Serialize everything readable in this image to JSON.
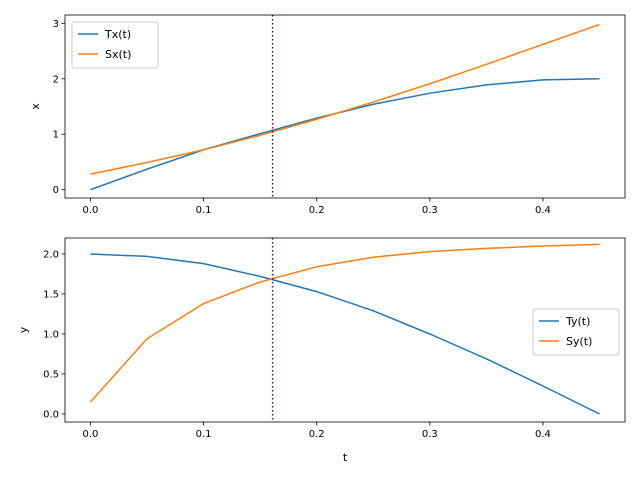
{
  "chart_data": [
    {
      "type": "line",
      "title": "",
      "xlabel": "",
      "ylabel": "x",
      "xlim": [
        -0.0225,
        0.4725
      ],
      "ylim": [
        -0.15,
        3.15
      ],
      "xticks": [
        0.0,
        0.1,
        0.2,
        0.3,
        0.4
      ],
      "xtick_labels": [
        "0.0",
        "0.1",
        "0.2",
        "0.3",
        "0.4"
      ],
      "yticks": [
        0,
        1,
        2,
        3
      ],
      "ytick_labels": [
        "0",
        "1",
        "2",
        "3"
      ],
      "legend_position": "upper-left",
      "vline": {
        "x": 0.161,
        "color": "#4b0082",
        "style": "dotted"
      },
      "series": [
        {
          "name": "Tx(t)",
          "color": "#1f77b4",
          "x": [
            0.0,
            0.05,
            0.1,
            0.15,
            0.2,
            0.25,
            0.3,
            0.35,
            0.4,
            0.45
          ],
          "values": [
            0.0,
            0.37,
            0.72,
            1.01,
            1.29,
            1.54,
            1.74,
            1.89,
            1.98,
            2.0
          ]
        },
        {
          "name": "Sx(t)",
          "color": "#ff7f0e",
          "x": [
            0.0,
            0.05,
            0.1,
            0.15,
            0.2,
            0.25,
            0.3,
            0.35,
            0.4,
            0.45
          ],
          "values": [
            0.28,
            0.49,
            0.72,
            0.98,
            1.27,
            1.58,
            1.91,
            2.26,
            2.62,
            2.98
          ]
        }
      ]
    },
    {
      "type": "line",
      "title": "",
      "xlabel": "t",
      "ylabel": "y",
      "xlim": [
        -0.0225,
        0.4725
      ],
      "ylim": [
        -0.1,
        2.2
      ],
      "xticks": [
        0.0,
        0.1,
        0.2,
        0.3,
        0.4
      ],
      "xtick_labels": [
        "0.0",
        "0.1",
        "0.2",
        "0.3",
        "0.4"
      ],
      "yticks": [
        0.0,
        0.5,
        1.0,
        1.5,
        2.0
      ],
      "ytick_labels": [
        "0.0",
        "0.5",
        "1.0",
        "1.5",
        "2.0"
      ],
      "legend_position": "center-right",
      "vline": {
        "x": 0.161,
        "color": "#4b0082",
        "style": "dotted"
      },
      "series": [
        {
          "name": "Ty(t)",
          "color": "#1f77b4",
          "x": [
            0.0,
            0.05,
            0.1,
            0.15,
            0.2,
            0.25,
            0.3,
            0.35,
            0.4,
            0.45
          ],
          "values": [
            2.0,
            1.97,
            1.88,
            1.72,
            1.53,
            1.29,
            1.0,
            0.69,
            0.35,
            0.0
          ]
        },
        {
          "name": "Sy(t)",
          "color": "#ff7f0e",
          "x": [
            0.0,
            0.05,
            0.1,
            0.15,
            0.2,
            0.25,
            0.3,
            0.35,
            0.4,
            0.45
          ],
          "values": [
            0.15,
            0.94,
            1.38,
            1.65,
            1.84,
            1.96,
            2.03,
            2.07,
            2.1,
            2.12
          ]
        }
      ]
    }
  ]
}
